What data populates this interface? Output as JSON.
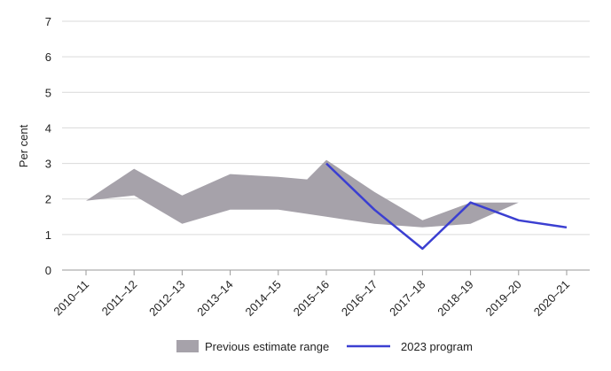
{
  "chart_data": {
    "type": "area",
    "x": [
      "2010–11",
      "2011–12",
      "2012–13",
      "2013–14",
      "2014–15",
      "2015–16",
      "2016–17",
      "2017–18",
      "2018–19",
      "2019–20",
      "2020–21"
    ],
    "ylabel": "Per cent",
    "xlabel": "",
    "ylim": [
      0,
      7
    ],
    "yticks": [
      0,
      1,
      2,
      3,
      4,
      5,
      6,
      7
    ],
    "grid": true,
    "legend_position": "bottom",
    "series": [
      {
        "name": "Previous estimate range",
        "kind": "range",
        "color": "#a6a2aa",
        "upper": [
          1.95,
          2.85,
          2.1,
          2.7,
          2.62,
          2.55,
          3.1,
          2.2,
          1.4,
          1.9,
          1.9
        ],
        "lower": [
          1.95,
          2.1,
          1.3,
          1.7,
          1.7,
          1.5,
          1.3,
          1.2,
          1.3,
          1.9,
          1.9
        ],
        "upper_x_fractions": [
          0,
          1,
          2,
          3,
          4,
          4.6,
          5,
          6,
          7,
          8,
          9
        ],
        "lower_x_fractions": [
          0,
          1,
          2,
          3,
          4,
          5,
          6,
          7,
          8,
          9,
          9
        ]
      },
      {
        "name": "2023 program",
        "kind": "line",
        "color": "#3b3fd1",
        "values": [
          null,
          null,
          null,
          null,
          null,
          3.0,
          1.7,
          0.6,
          1.9,
          1.4,
          1.2
        ]
      }
    ]
  }
}
